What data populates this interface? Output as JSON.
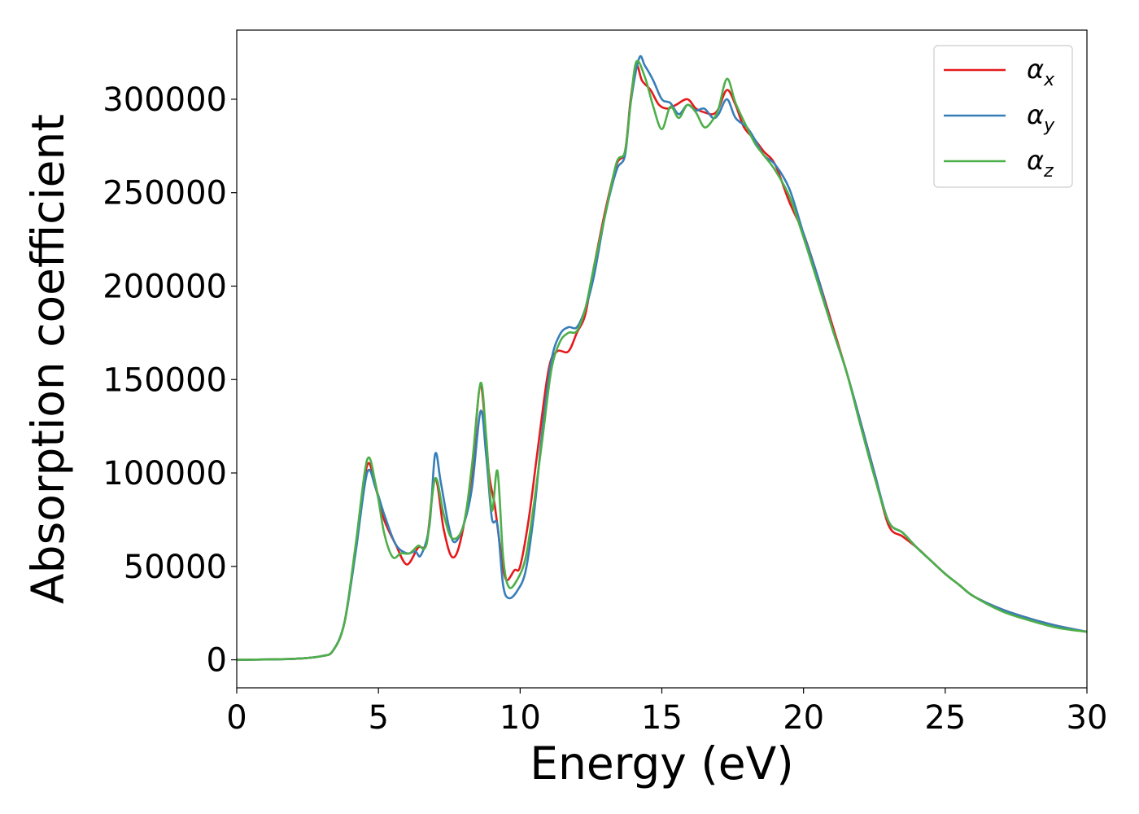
{
  "chart_data": {
    "type": "line",
    "xlabel": "Energy (eV)",
    "ylabel": "Absorption coefficient",
    "xlim": [
      0,
      30
    ],
    "ylim": [
      -15000,
      337000
    ],
    "xticks": [
      0,
      5,
      10,
      15,
      20,
      25,
      30
    ],
    "xtick_labels": [
      "0",
      "5",
      "10",
      "15",
      "20",
      "25",
      "30"
    ],
    "yticks": [
      0,
      50000,
      100000,
      150000,
      200000,
      250000,
      300000
    ],
    "ytick_labels": [
      "0",
      "50000",
      "100000",
      "150000",
      "200000",
      "250000",
      "300000"
    ],
    "grid": false,
    "legend_position": "top-right",
    "series": [
      {
        "name": "αx",
        "symbol": "α",
        "subscript": "x",
        "color": "#e41a1c",
        "points": [
          [
            0,
            0
          ],
          [
            2,
            500
          ],
          [
            3,
            2000
          ],
          [
            3.4,
            5000
          ],
          [
            3.8,
            20000
          ],
          [
            4.2,
            60000
          ],
          [
            4.6,
            104000
          ],
          [
            4.9,
            92000
          ],
          [
            5.2,
            75000
          ],
          [
            5.6,
            62000
          ],
          [
            6,
            51000
          ],
          [
            6.4,
            60000
          ],
          [
            6.7,
            63000
          ],
          [
            7,
            97000
          ],
          [
            7.3,
            70000
          ],
          [
            7.6,
            55000
          ],
          [
            7.9,
            64000
          ],
          [
            8.3,
            100000
          ],
          [
            8.6,
            146000
          ],
          [
            8.9,
            100000
          ],
          [
            9.1,
            83000
          ],
          [
            9.3,
            60000
          ],
          [
            9.5,
            43000
          ],
          [
            9.8,
            48000
          ],
          [
            10,
            50000
          ],
          [
            10.3,
            75000
          ],
          [
            10.6,
            110000
          ],
          [
            11,
            155000
          ],
          [
            11.3,
            165000
          ],
          [
            11.7,
            165000
          ],
          [
            12,
            175000
          ],
          [
            12.3,
            185000
          ],
          [
            12.6,
            210000
          ],
          [
            13,
            240000
          ],
          [
            13.4,
            265000
          ],
          [
            13.7,
            272000
          ],
          [
            13.9,
            300000
          ],
          [
            14.1,
            318000
          ],
          [
            14.3,
            310000
          ],
          [
            14.6,
            305000
          ],
          [
            14.9,
            297000
          ],
          [
            15.2,
            295000
          ],
          [
            15.5,
            297000
          ],
          [
            15.9,
            300000
          ],
          [
            16.2,
            295000
          ],
          [
            16.5,
            293000
          ],
          [
            16.8,
            292000
          ],
          [
            17,
            295000
          ],
          [
            17.3,
            305000
          ],
          [
            17.6,
            297000
          ],
          [
            17.9,
            285000
          ],
          [
            18.3,
            278000
          ],
          [
            18.6,
            272000
          ],
          [
            19,
            265000
          ],
          [
            19.5,
            245000
          ],
          [
            20,
            228000
          ],
          [
            20.5,
            205000
          ],
          [
            21,
            180000
          ],
          [
            21.5,
            155000
          ],
          [
            22,
            128000
          ],
          [
            22.5,
            100000
          ],
          [
            23,
            72000
          ],
          [
            23.5,
            66000
          ],
          [
            24,
            60000
          ],
          [
            24.5,
            53000
          ],
          [
            25,
            46000
          ],
          [
            25.5,
            40000
          ],
          [
            26,
            34000
          ],
          [
            27,
            27000
          ],
          [
            28,
            22000
          ],
          [
            29,
            18000
          ],
          [
            30,
            15000
          ]
        ]
      },
      {
        "name": "αy",
        "symbol": "α",
        "subscript": "y",
        "color": "#377eb8",
        "points": [
          [
            0,
            0
          ],
          [
            2,
            500
          ],
          [
            3,
            2000
          ],
          [
            3.4,
            5000
          ],
          [
            3.8,
            20000
          ],
          [
            4.2,
            58000
          ],
          [
            4.6,
            100000
          ],
          [
            4.9,
            92000
          ],
          [
            5.2,
            78000
          ],
          [
            5.6,
            62000
          ],
          [
            6,
            57000
          ],
          [
            6.3,
            58000
          ],
          [
            6.5,
            56000
          ],
          [
            6.8,
            72000
          ],
          [
            7,
            110000
          ],
          [
            7.2,
            95000
          ],
          [
            7.5,
            70000
          ],
          [
            7.7,
            63000
          ],
          [
            8,
            72000
          ],
          [
            8.3,
            92000
          ],
          [
            8.6,
            133000
          ],
          [
            8.8,
            110000
          ],
          [
            9,
            76000
          ],
          [
            9.2,
            72000
          ],
          [
            9.4,
            40000
          ],
          [
            9.6,
            33000
          ],
          [
            9.9,
            37000
          ],
          [
            10.2,
            48000
          ],
          [
            10.5,
            80000
          ],
          [
            10.8,
            125000
          ],
          [
            11.1,
            160000
          ],
          [
            11.4,
            174000
          ],
          [
            11.7,
            178000
          ],
          [
            12,
            178000
          ],
          [
            12.3,
            188000
          ],
          [
            12.6,
            205000
          ],
          [
            13,
            238000
          ],
          [
            13.4,
            262000
          ],
          [
            13.7,
            270000
          ],
          [
            13.9,
            298000
          ],
          [
            14.2,
            322000
          ],
          [
            14.4,
            318000
          ],
          [
            14.7,
            310000
          ],
          [
            15,
            300000
          ],
          [
            15.3,
            298000
          ],
          [
            15.6,
            292000
          ],
          [
            15.9,
            297000
          ],
          [
            16.2,
            294000
          ],
          [
            16.5,
            295000
          ],
          [
            16.8,
            290000
          ],
          [
            17,
            292000
          ],
          [
            17.3,
            300000
          ],
          [
            17.6,
            290000
          ],
          [
            18,
            285000
          ],
          [
            18.3,
            278000
          ],
          [
            18.6,
            270000
          ],
          [
            19,
            265000
          ],
          [
            19.5,
            252000
          ],
          [
            20,
            228000
          ],
          [
            20.5,
            205000
          ],
          [
            21,
            178000
          ],
          [
            21.5,
            155000
          ],
          [
            22,
            128000
          ],
          [
            22.5,
            100000
          ],
          [
            23,
            74000
          ],
          [
            23.5,
            68000
          ],
          [
            24,
            60000
          ],
          [
            24.5,
            53000
          ],
          [
            25,
            46000
          ],
          [
            25.5,
            40000
          ],
          [
            26,
            34000
          ],
          [
            27,
            27000
          ],
          [
            28,
            22000
          ],
          [
            29,
            18000
          ],
          [
            30,
            15000
          ]
        ]
      },
      {
        "name": "αz",
        "symbol": "α",
        "subscript": "z",
        "color": "#4daf4a",
        "points": [
          [
            0,
            0
          ],
          [
            2,
            500
          ],
          [
            3,
            2000
          ],
          [
            3.4,
            5000
          ],
          [
            3.8,
            20000
          ],
          [
            4.2,
            62000
          ],
          [
            4.6,
            107000
          ],
          [
            4.9,
            94000
          ],
          [
            5.2,
            68000
          ],
          [
            5.5,
            55000
          ],
          [
            5.8,
            57000
          ],
          [
            6.1,
            57000
          ],
          [
            6.4,
            61000
          ],
          [
            6.7,
            62000
          ],
          [
            7,
            97000
          ],
          [
            7.3,
            78000
          ],
          [
            7.6,
            65000
          ],
          [
            8,
            72000
          ],
          [
            8.3,
            104000
          ],
          [
            8.6,
            148000
          ],
          [
            8.8,
            120000
          ],
          [
            9,
            80000
          ],
          [
            9.2,
            101000
          ],
          [
            9.4,
            55000
          ],
          [
            9.6,
            39000
          ],
          [
            9.9,
            43000
          ],
          [
            10.2,
            55000
          ],
          [
            10.5,
            85000
          ],
          [
            10.8,
            120000
          ],
          [
            11.1,
            155000
          ],
          [
            11.4,
            170000
          ],
          [
            11.7,
            175000
          ],
          [
            12,
            176000
          ],
          [
            12.3,
            188000
          ],
          [
            12.6,
            210000
          ],
          [
            13,
            238000
          ],
          [
            13.4,
            266000
          ],
          [
            13.7,
            272000
          ],
          [
            13.9,
            298000
          ],
          [
            14.1,
            320000
          ],
          [
            14.4,
            312000
          ],
          [
            14.7,
            296000
          ],
          [
            15,
            284000
          ],
          [
            15.3,
            296000
          ],
          [
            15.6,
            290000
          ],
          [
            15.9,
            297000
          ],
          [
            16.2,
            293000
          ],
          [
            16.5,
            285000
          ],
          [
            16.8,
            289000
          ],
          [
            17,
            295000
          ],
          [
            17.3,
            311000
          ],
          [
            17.6,
            298000
          ],
          [
            18,
            285000
          ],
          [
            18.3,
            276000
          ],
          [
            18.6,
            270000
          ],
          [
            19,
            262000
          ],
          [
            19.5,
            248000
          ],
          [
            20,
            226000
          ],
          [
            20.5,
            202000
          ],
          [
            21,
            178000
          ],
          [
            21.5,
            155000
          ],
          [
            22,
            126000
          ],
          [
            22.5,
            98000
          ],
          [
            23,
            74000
          ],
          [
            23.5,
            68000
          ],
          [
            24,
            60000
          ],
          [
            24.5,
            53000
          ],
          [
            25,
            46000
          ],
          [
            25.5,
            40000
          ],
          [
            26,
            34000
          ],
          [
            27,
            26000
          ],
          [
            28,
            21000
          ],
          [
            29,
            17000
          ],
          [
            30,
            15000
          ]
        ]
      }
    ]
  }
}
